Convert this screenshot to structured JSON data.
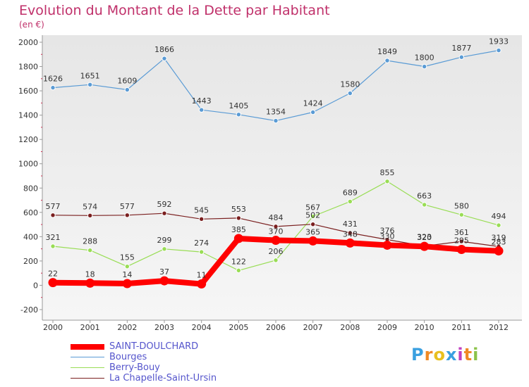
{
  "header": {
    "title": "Evolution du Montant de la Dette par Habitant",
    "unit": "(en €)"
  },
  "brand": {
    "text": "Proxiti"
  },
  "colors": {
    "title": "#c0306a",
    "plot_bg": "#ebebeb",
    "legend_text": "#5555cc"
  },
  "chart_data": {
    "type": "line",
    "title": "Evolution du Montant de la Dette par Habitant",
    "ylabel": "(en €)",
    "xlabel": "",
    "x": [
      "2000",
      "2001",
      "2002",
      "2003",
      "2004",
      "2005",
      "2006",
      "2007",
      "2008",
      "2009",
      "2010",
      "2011",
      "2012"
    ],
    "ylim": [
      -200,
      2000
    ],
    "yticks": [
      -200,
      0,
      200,
      400,
      600,
      800,
      1000,
      1200,
      1400,
      1600,
      1800,
      2000
    ],
    "grid": false,
    "legend_position": "bottom-left",
    "series": [
      {
        "name": "SAINT-DOULCHARD",
        "color": "#ff0000",
        "values": [
          22,
          18,
          14,
          37,
          11,
          385,
          370,
          365,
          348,
          330,
          320,
          295,
          283
        ]
      },
      {
        "name": "Bourges",
        "color": "#5a9bd5",
        "values": [
          1626,
          1651,
          1609,
          1866,
          1443,
          1405,
          1354,
          1424,
          1580,
          1849,
          1800,
          1877,
          1933
        ]
      },
      {
        "name": "Berry-Bouy",
        "color": "#99dd55",
        "values": [
          321,
          288,
          155,
          299,
          274,
          122,
          206,
          567,
          689,
          855,
          663,
          580,
          494
        ]
      },
      {
        "name": "La Chapelle-Saint-Ursin",
        "color": "#7a1f1f",
        "values": [
          577,
          574,
          577,
          592,
          545,
          553,
          484,
          502,
          431,
          376,
          323,
          361,
          319
        ]
      }
    ]
  }
}
